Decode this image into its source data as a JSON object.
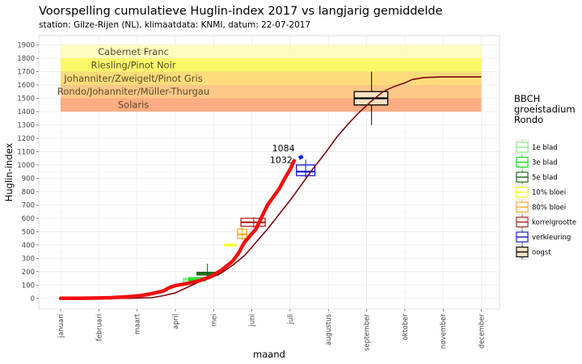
{
  "chart_data": {
    "type": "line",
    "title": "Voorspelling cumulatieve Huglin-index 2017 vs langjarig gemiddelde",
    "subtitle": "station: Gilze-Rijen (NL), klimaatdata: KNMI, datum: 22-07-2017",
    "xlabel": "maand",
    "ylabel": "Huglin-index",
    "ylim": [
      -80,
      1970
    ],
    "y_ticks": [
      0,
      100,
      200,
      300,
      400,
      500,
      600,
      700,
      800,
      900,
      1000,
      1100,
      1200,
      1300,
      1400,
      1500,
      1600,
      1700,
      1800,
      1900
    ],
    "x_ticks": [
      "januari",
      "februari",
      "maart",
      "april",
      "mei",
      "juni",
      "juli",
      "augustus",
      "september",
      "oktober",
      "november",
      "december"
    ],
    "grid": true,
    "legend_position": "right",
    "colors": {
      "panel": "#ffffff",
      "grid": "#ebebeb",
      "forecast_line": "#ee1111",
      "average_line": "#7a0a12",
      "forecast_marker": "#1122ee"
    },
    "bands": [
      {
        "label": "Cabernet Franc",
        "from": 1800,
        "to": 1900,
        "color": "#fdfbb8"
      },
      {
        "label": "Riesling/Pinot Noir",
        "from": 1700,
        "to": 1800,
        "color": "#fcf75a"
      },
      {
        "label": "Johanniter/Zweigelt/Pinot Gris",
        "from": 1600,
        "to": 1700,
        "color": "#fdd86a"
      },
      {
        "label": "Rondo/Johanniter/Müller-Thurgau",
        "from": 1500,
        "to": 1600,
        "color": "#fdc27a"
      },
      {
        "label": "Solaris",
        "from": 1400,
        "to": 1500,
        "color": "#fca474"
      }
    ],
    "series": [
      {
        "name": "2017",
        "x": [
          1,
          15,
          30,
          45,
          60,
          70,
          80,
          90,
          95,
          100,
          110,
          120,
          130,
          140,
          150,
          155,
          160,
          165,
          170,
          175,
          180,
          185,
          190,
          195,
          200,
          203
        ],
        "values": [
          0,
          0,
          2,
          5,
          12,
          20,
          35,
          55,
          80,
          95,
          110,
          130,
          160,
          210,
          280,
          340,
          420,
          470,
          520,
          610,
          700,
          760,
          820,
          900,
          975,
          1032
        ]
      },
      {
        "name": "langjarig gemiddelde",
        "x": [
          1,
          60,
          80,
          90,
          100,
          110,
          120,
          130,
          140,
          150,
          160,
          170,
          180,
          190,
          200,
          210,
          220,
          230,
          240,
          250,
          260,
          270,
          280,
          290,
          300,
          305,
          315,
          330,
          345,
          365
        ],
        "values": [
          0,
          0,
          5,
          20,
          40,
          80,
          120,
          150,
          190,
          250,
          320,
          420,
          520,
          630,
          740,
          860,
          980,
          1090,
          1210,
          1310,
          1400,
          1480,
          1550,
          1590,
          1620,
          1640,
          1655,
          1660,
          1660,
          1660
        ]
      }
    ],
    "forecast": {
      "x": [
        203,
        207
      ],
      "values": [
        1032,
        1084
      ],
      "labels": [
        "1032",
        "1084"
      ]
    },
    "stages": [
      {
        "name": "1e blad",
        "color": "#88ee88",
        "q1_day": 107,
        "median_day": 114,
        "q3_day": 121,
        "lo": 125,
        "median": 140,
        "hi": 150,
        "wlo": 125,
        "whi": 150
      },
      {
        "name": "3e blad",
        "color": "#11dd11",
        "q1_day": 112,
        "median_day": 119,
        "q3_day": 126,
        "lo": 130,
        "median": 140,
        "hi": 155,
        "wlo": 125,
        "whi": 160
      },
      {
        "name": "5e blad",
        "color": "#116611",
        "q1_day": 119,
        "median_day": 128,
        "q3_day": 138,
        "lo": 175,
        "median": 185,
        "hi": 195,
        "wlo": 140,
        "whi": 260
      },
      {
        "name": "10% bloei",
        "color": "#ffff22",
        "q1_day": 143,
        "median_day": 148,
        "q3_day": 153,
        "lo": 395,
        "median": 400,
        "hi": 405,
        "wlo": 395,
        "whi": 405
      },
      {
        "name": "80% bloei",
        "color": "#ffaa22",
        "q1_day": 154,
        "median_day": 158,
        "q3_day": 162,
        "lo": 450,
        "median": 480,
        "hi": 520,
        "wlo": 440,
        "whi": 530
      },
      {
        "name": "korrelgrootte",
        "color": "#aa2222",
        "q1_day": 157,
        "median_day": 168,
        "q3_day": 178,
        "lo": 540,
        "median": 570,
        "hi": 600,
        "wlo": 530,
        "whi": 610
      },
      {
        "name": "verkleuring",
        "color": "#1111cc",
        "q1_day": 205,
        "median_day": 213,
        "q3_day": 221,
        "lo": 920,
        "median": 950,
        "hi": 1000,
        "wlo": 900,
        "whi": 1040
      },
      {
        "name": "oogst",
        "color": "#000000",
        "q1_day": 255,
        "median_day": 270,
        "q3_day": 284,
        "lo": 1450,
        "median": 1500,
        "hi": 1550,
        "wlo": 1300,
        "whi": 1700
      }
    ],
    "legend_title": [
      "BBCH",
      "groeistadium",
      "Rondo"
    ]
  }
}
